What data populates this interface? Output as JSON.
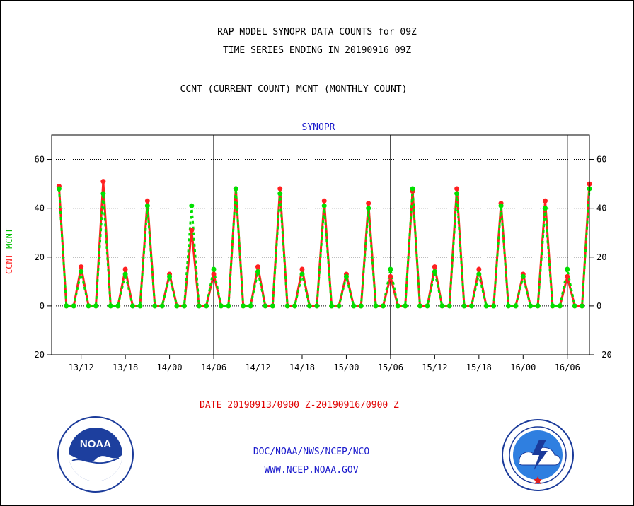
{
  "header": {
    "title_line1": "RAP MODEL SYNOPR DATA COUNTS for 09Z",
    "title_line2": "TIME SERIES ENDING IN 20190916 09Z",
    "subtitle": "CCNT (CURRENT COUNT) MCNT (MONTHLY COUNT)"
  },
  "footer": {
    "date_range": "DATE 20190913/0900 Z-20190916/0900 Z",
    "org": "DOC/NOAA/NWS/NCEP/NCO",
    "url": "WWW.NCEP.NOAA.GOV"
  },
  "logos": {
    "left": {
      "icon": "noaa-logo-icon",
      "text": "NOAA"
    },
    "right": {
      "icon": "national-weather-service-logo-icon"
    }
  },
  "colors": {
    "ccnt": "#ff2020",
    "mcnt": "#00e000",
    "text_blue": "#1a1acc",
    "text_red": "#e00000"
  },
  "chart_data": {
    "type": "line",
    "title": "SYNOPR",
    "ylabel_parts": [
      "CCNT",
      "MCNT"
    ],
    "x_start_hour": 9,
    "x_step_hours": 1,
    "xlim_hours": [
      8,
      81
    ],
    "ylim": [
      -20,
      70
    ],
    "yticks": [
      -20,
      0,
      20,
      40,
      60
    ],
    "gridlines_y": [
      0,
      20,
      40,
      60
    ],
    "xtick_hours": [
      12,
      18,
      24,
      30,
      36,
      42,
      48,
      54,
      60,
      66,
      72,
      78
    ],
    "xtick_labels": [
      "13/12",
      "13/18",
      "14/00",
      "14/06",
      "14/12",
      "14/18",
      "15/00",
      "15/06",
      "15/12",
      "15/18",
      "16/00",
      "16/06"
    ],
    "day_separator_hours": [
      30,
      54,
      78
    ],
    "series": [
      {
        "name": "CCNT",
        "values": [
          49,
          0,
          0,
          16,
          0,
          0,
          51,
          0,
          0,
          15,
          0,
          0,
          43,
          0,
          0,
          13,
          0,
          0,
          31,
          0,
          0,
          13,
          0,
          0,
          48,
          0,
          0,
          16,
          0,
          0,
          48,
          0,
          0,
          15,
          0,
          0,
          43,
          0,
          0,
          13,
          0,
          0,
          42,
          0,
          0,
          12,
          0,
          0,
          47,
          0,
          0,
          16,
          0,
          0,
          48,
          0,
          0,
          15,
          0,
          0,
          42,
          0,
          0,
          13,
          0,
          0,
          43,
          0,
          0,
          12,
          0,
          0,
          50
        ]
      },
      {
        "name": "MCNT",
        "values": [
          48,
          0,
          0,
          14,
          0,
          0,
          46,
          0,
          0,
          13,
          0,
          0,
          41,
          0,
          0,
          12,
          0,
          0,
          41,
          0,
          0,
          15,
          0,
          0,
          48,
          0,
          0,
          14,
          0,
          0,
          46,
          0,
          0,
          13,
          0,
          0,
          41,
          0,
          0,
          12,
          0,
          0,
          40,
          0,
          0,
          15,
          0,
          0,
          48,
          0,
          0,
          14,
          0,
          0,
          46,
          0,
          0,
          13,
          0,
          0,
          41,
          0,
          0,
          12,
          0,
          0,
          40,
          0,
          0,
          15,
          0,
          0,
          48
        ]
      }
    ]
  }
}
